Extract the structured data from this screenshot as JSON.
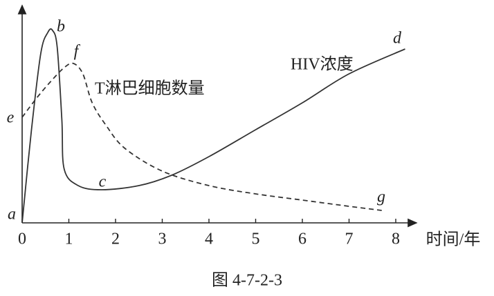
{
  "chart_data": {
    "type": "line",
    "x_label": "时间/年",
    "caption": "图 4-7-2-3",
    "xlim": [
      0,
      8.5
    ],
    "xticks": [
      0,
      1,
      2,
      3,
      4,
      5,
      6,
      7,
      8
    ],
    "ylim": [
      0,
      100
    ],
    "series": [
      {
        "name": "HIV浓度",
        "color": "#333333",
        "dashed": false,
        "x": [
          0,
          0.2,
          0.4,
          0.55,
          0.65,
          0.75,
          0.85,
          0.9,
          1.2,
          1.7,
          2.5,
          3.2,
          4,
          5,
          6,
          7,
          8.2
        ],
        "values": [
          0,
          45,
          82,
          92,
          93,
          85,
          50,
          26,
          18,
          16,
          18,
          23,
          32,
          45,
          58,
          72,
          84
        ]
      },
      {
        "name": "T淋巴细胞数量",
        "color": "#333333",
        "dashed": true,
        "x": [
          0,
          0.3,
          0.6,
          0.9,
          1.1,
          1.3,
          1.5,
          1.8,
          2.2,
          3,
          4,
          5,
          6,
          7,
          7.7
        ],
        "values": [
          51,
          60,
          68,
          75,
          77,
          72,
          58,
          47,
          36,
          25,
          18,
          14,
          11,
          8,
          6
        ]
      }
    ],
    "annotations": [
      "a",
      "b",
      "c",
      "d",
      "e",
      "f",
      "g"
    ]
  }
}
